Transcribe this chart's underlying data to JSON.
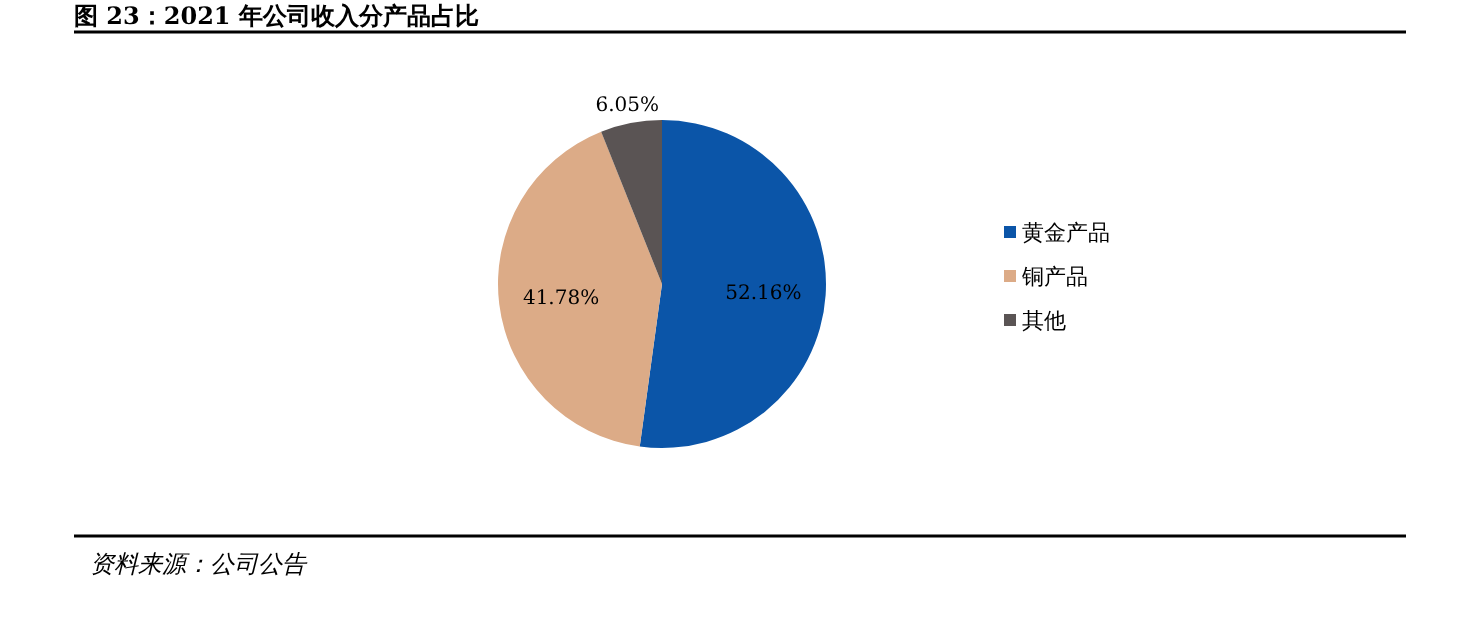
{
  "chart_data": {
    "type": "pie",
    "title": "图 23：2021 年公司收入分产品占比",
    "categories": [
      "黄金产品",
      "铜产品",
      "其他"
    ],
    "values": [
      52.16,
      41.78,
      6.05
    ],
    "colors": [
      "#0b55a8",
      "#dcab87",
      "#5a5454"
    ],
    "value_labels": [
      "52.16%",
      "41.78%",
      "6.05%"
    ],
    "legend": "right",
    "annotations": [
      "资料来源：公司公告"
    ]
  }
}
